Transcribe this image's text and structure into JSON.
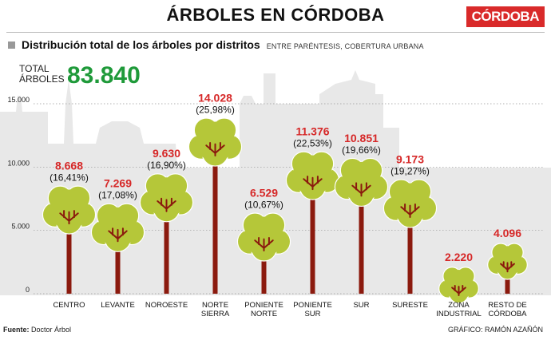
{
  "header": {
    "title": "ÁRBOLES EN CÓRDOBA",
    "brand": "CÓRDOBA",
    "subtitle": "Distribución total de los árboles por distritos",
    "note": "ENTRE PARÉNTESIS, COBERTURA URBANA"
  },
  "total": {
    "label_line1": "TOTAL",
    "label_line2": "ÁRBOLES",
    "value": "83.840"
  },
  "footer": {
    "source_label": "Fuente:",
    "source": "Doctor Árbol",
    "credit": "GRÁFICO: RAMÓN AZAÑÓN"
  },
  "colors": {
    "value_red": "#d62828",
    "total_green": "#1f9a3a",
    "canopy": "#b5c739",
    "trunk": "#8b1a0e",
    "skyline": "#e8e8e8"
  },
  "chart_data": {
    "type": "bar",
    "title": "Distribución total de los árboles por distritos",
    "ylim": [
      0,
      15000
    ],
    "y_ticks": [
      "0",
      "5.000",
      "10.000",
      "15.000"
    ],
    "y_tick_values": [
      0,
      5000,
      10000,
      15000
    ],
    "categories": [
      {
        "label": [
          "CENTRO"
        ],
        "value": 8668,
        "value_label": "8.668",
        "coverage": "(16,41%)"
      },
      {
        "label": [
          "LEVANTE"
        ],
        "value": 7269,
        "value_label": "7.269",
        "coverage": "(17,08%)"
      },
      {
        "label": [
          "NOROESTE"
        ],
        "value": 9630,
        "value_label": "9.630",
        "coverage": "(16,90%)"
      },
      {
        "label": [
          "NORTE",
          "SIERRA"
        ],
        "value": 14028,
        "value_label": "14.028",
        "coverage": "(25,98%)"
      },
      {
        "label": [
          "PONIENTE",
          "NORTE"
        ],
        "value": 6529,
        "value_label": "6.529",
        "coverage": "(10,67%)"
      },
      {
        "label": [
          "PONIENTE",
          "SUR"
        ],
        "value": 11376,
        "value_label": "11.376",
        "coverage": "(22,53%)"
      },
      {
        "label": [
          "SUR"
        ],
        "value": 10851,
        "value_label": "10.851",
        "coverage": "(19,66%)"
      },
      {
        "label": [
          "SURESTE"
        ],
        "value": 9173,
        "value_label": "9.173",
        "coverage": "(19,27%)"
      },
      {
        "label": [
          "ZONA",
          "INDUSTRIAL"
        ],
        "value": 2220,
        "value_label": "2.220",
        "coverage": ""
      },
      {
        "label": [
          "RESTO DE",
          "CÓRDOBA"
        ],
        "value": 4096,
        "value_label": "4.096",
        "coverage": ""
      }
    ]
  }
}
